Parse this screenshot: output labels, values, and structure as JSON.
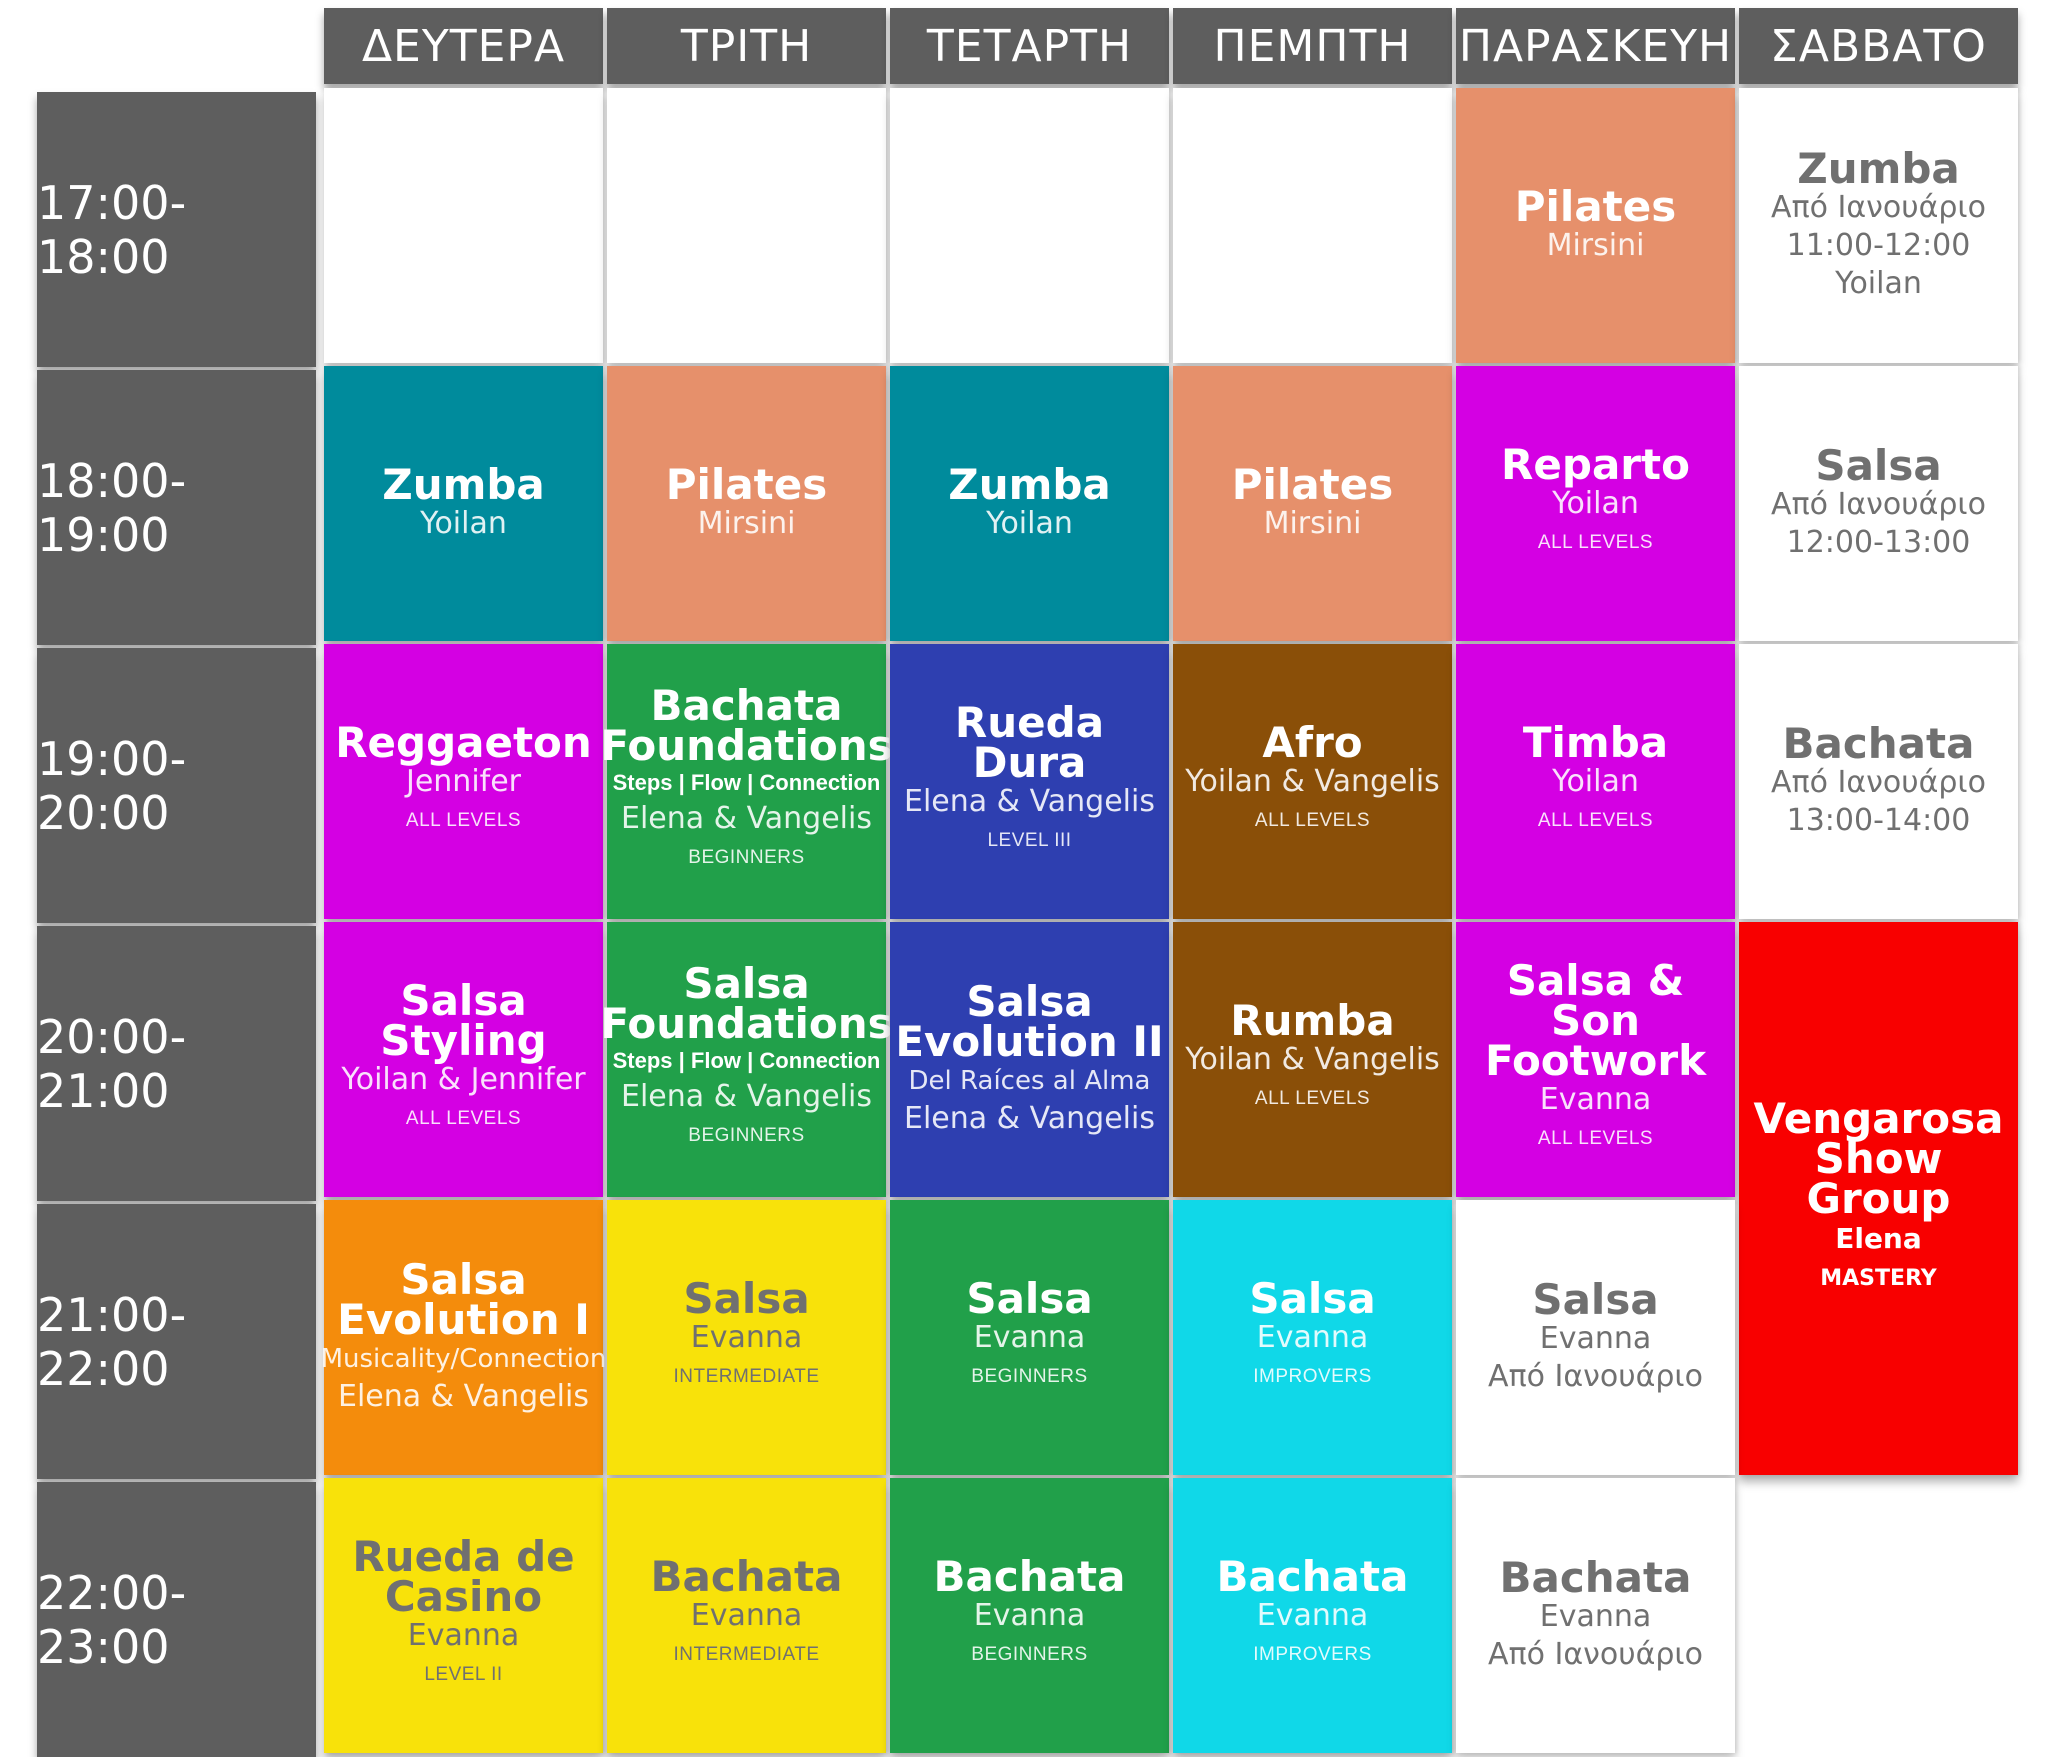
{
  "colors": {
    "header_bg": "#5e5e5e",
    "teal": "#008b9c",
    "salmon": "#e6906b",
    "magenta": "#d400e3",
    "green": "#21a04a",
    "navy": "#2e3fb0",
    "brown": "#8a4f08",
    "orange": "#f48c0c",
    "yellow": "#f8e20a",
    "cyan": "#10d8e8",
    "red": "#f80000",
    "white": "#ffffff"
  },
  "days": [
    "ΔΕΥΤΕΡΑ",
    "ΤΡΙΤΗ",
    "ΤΕΤΑΡΤΗ",
    "ΠΕΜΠΤΗ",
    "ΠΑΡΑΣΚΕΥΗ",
    "ΣΑΒΒΑΤΟ"
  ],
  "times": [
    "17:00-18:00",
    "18:00-19:00",
    "19:00-20:00",
    "20:00-21:00",
    "21:00-22:00",
    "22:00-23:00"
  ],
  "classes": {
    "fri_17": {
      "title": "Pilates",
      "teacher": "Mirsini"
    },
    "sat_1": {
      "title": "Zumba",
      "note": "Από Ιανουάριο",
      "time": "11:00-12:00",
      "teacher": "Yoilan"
    },
    "mon_18": {
      "title": "Zumba",
      "teacher": "Yoilan"
    },
    "tue_18": {
      "title": "Pilates",
      "teacher": "Mirsini"
    },
    "wed_18": {
      "title": "Zumba",
      "teacher": "Yoilan"
    },
    "thu_18": {
      "title": "Pilates",
      "teacher": "Mirsini"
    },
    "fri_18": {
      "title": "Reparto",
      "teacher": "Yoilan",
      "level": "ALL LEVELS"
    },
    "sat_2": {
      "title": "Salsa",
      "note": "Από Ιανουάριο",
      "time": "12:00-13:00"
    },
    "mon_19": {
      "title": "Reggaeton",
      "teacher": "Jennifer",
      "level": "ALL LEVELS"
    },
    "tue_19": {
      "title_1": "Bachata",
      "title_2": "Foundations",
      "detail": "Steps | Flow | Connection",
      "teacher": "Elena & Vangelis",
      "level": "BEGINNERS"
    },
    "wed_19": {
      "title": "Rueda Dura",
      "teacher": "Elena & Vangelis",
      "level": "LEVEL III"
    },
    "thu_19": {
      "title": "Afro",
      "teacher": "Yoilan & Vangelis",
      "level": "ALL LEVELS"
    },
    "fri_19": {
      "title": "Timba",
      "teacher": "Yoilan",
      "level": "ALL LEVELS"
    },
    "sat_3": {
      "title": "Bachata",
      "note": "Από Ιανουάριο",
      "time": "13:00-14:00"
    },
    "mon_20": {
      "title_1": "Salsa",
      "title_2": "Styling",
      "teacher": "Yoilan & Jennifer",
      "level": "ALL LEVELS"
    },
    "tue_20": {
      "title_1": "Salsa",
      "title_2": "Foundations",
      "detail": "Steps | Flow | Connection",
      "teacher": "Elena & Vangelis",
      "level": "BEGINNERS"
    },
    "wed_20": {
      "title_1": "Salsa",
      "title_2": "Evolution II",
      "subtitle": "Del Raíces al Alma",
      "teacher": "Elena & Vangelis"
    },
    "thu_20": {
      "title": "Rumba",
      "teacher": "Yoilan & Vangelis",
      "level": "ALL LEVELS"
    },
    "fri_20": {
      "title_1": "Salsa & Son",
      "title_2": "Footwork",
      "teacher": "Evanna",
      "level": "ALL LEVELS"
    },
    "sat_show": {
      "title_1": "Vengarosa",
      "title_2": "Show",
      "title_3": "Group",
      "teacher": "Elena",
      "level": "MASTERY"
    },
    "mon_21": {
      "title_1": "Salsa",
      "title_2": "Evolution I",
      "subtitle": "Musicality/Connection",
      "teacher": "Elena & Vangelis"
    },
    "tue_21": {
      "title": "Salsa",
      "teacher": "Evanna",
      "level": "INTERMEDIATE"
    },
    "wed_21": {
      "title": "Salsa",
      "teacher": "Evanna",
      "level": "BEGINNERS"
    },
    "thu_21": {
      "title": "Salsa",
      "teacher": "Evanna",
      "level": "IMPROVERS"
    },
    "fri_21": {
      "title": "Salsa",
      "teacher": "Evanna",
      "note": "Από Ιανουάριο"
    },
    "mon_22": {
      "title_1": "Rueda de",
      "title_2": "Casino",
      "teacher": "Evanna",
      "level": "LEVEL II"
    },
    "tue_22": {
      "title": "Bachata",
      "teacher": "Evanna",
      "level": "INTERMEDIATE"
    },
    "wed_22": {
      "title": "Bachata",
      "teacher": "Evanna",
      "level": "BEGINNERS"
    },
    "thu_22": {
      "title": "Bachata",
      "teacher": "Evanna",
      "level": "IMPROVERS"
    },
    "fri_22": {
      "title": "Bachata",
      "teacher": "Evanna",
      "note": "Από Ιανουάριο"
    }
  }
}
